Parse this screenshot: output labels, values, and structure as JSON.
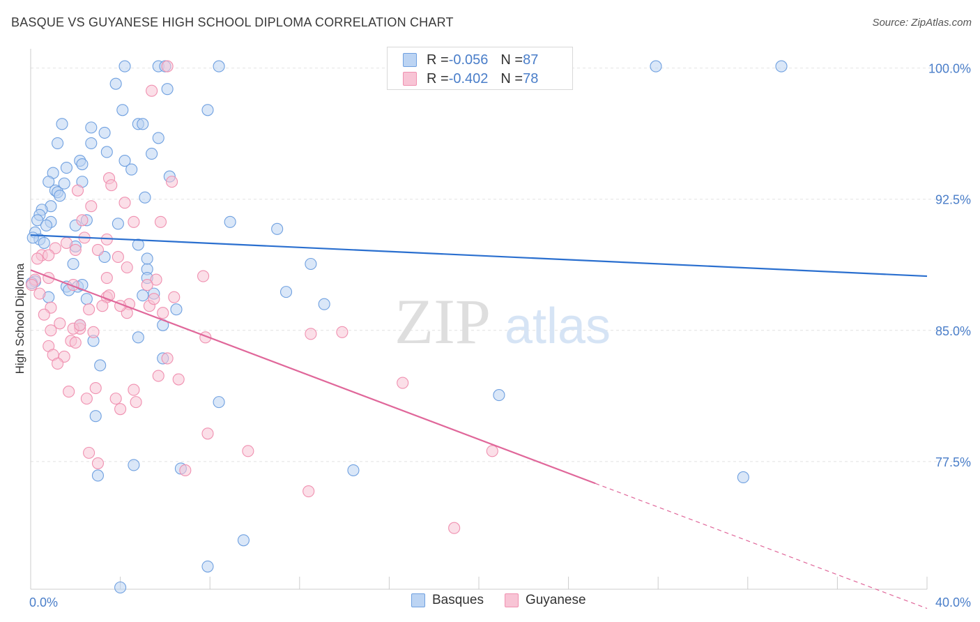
{
  "chart_data": {
    "type": "scatter",
    "title": "BASQUE VS GUYANESE HIGH SCHOOL DIPLOMA CORRELATION CHART",
    "source": "Source: ZipAtlas.com",
    "ylabel": "High School Diploma",
    "xlim": [
      0,
      40
    ],
    "ylim": [
      70.2,
      101.1
    ],
    "x_tick_labels": [
      "0.0%",
      "40.0%"
    ],
    "y_ticks": [
      {
        "value": 100.0,
        "label": "100.0%"
      },
      {
        "value": 92.5,
        "label": "92.5%"
      },
      {
        "value": 85.0,
        "label": "85.0%"
      },
      {
        "value": 77.5,
        "label": "77.5%"
      }
    ],
    "watermark": {
      "left": "ZIP",
      "right": "atlas"
    },
    "legend": [
      {
        "r_label": "R = ",
        "r_value": "-0.056",
        "n_label": "N = ",
        "n_value": "87"
      },
      {
        "r_label": "R = ",
        "r_value": "-0.402",
        "n_label": "N = ",
        "n_value": "78"
      }
    ],
    "series": [
      {
        "name": "Basques",
        "color": "#6fa0e0",
        "fill": "#bcd4f3",
        "line_color": "#2a6fcf",
        "trend": {
          "x0": 0,
          "y0": 90.45,
          "x1": 40,
          "y1": 88.1
        },
        "points": [
          [
            4.2,
            100.1
          ],
          [
            5.7,
            100.1
          ],
          [
            6.0,
            100.1
          ],
          [
            8.4,
            100.1
          ],
          [
            27.9,
            100.1
          ],
          [
            33.5,
            100.1
          ],
          [
            3.8,
            99.1
          ],
          [
            6.1,
            98.8
          ],
          [
            4.1,
            97.6
          ],
          [
            7.9,
            97.6
          ],
          [
            1.4,
            96.8
          ],
          [
            2.7,
            96.6
          ],
          [
            4.8,
            96.8
          ],
          [
            5.0,
            96.8
          ],
          [
            3.3,
            96.3
          ],
          [
            5.7,
            96.0
          ],
          [
            1.2,
            95.7
          ],
          [
            2.7,
            95.7
          ],
          [
            3.4,
            95.2
          ],
          [
            5.4,
            95.1
          ],
          [
            2.2,
            94.7
          ],
          [
            4.2,
            94.7
          ],
          [
            2.3,
            94.5
          ],
          [
            1.6,
            94.3
          ],
          [
            4.5,
            94.2
          ],
          [
            1.0,
            94.0
          ],
          [
            6.2,
            93.8
          ],
          [
            0.8,
            93.5
          ],
          [
            1.5,
            93.4
          ],
          [
            2.3,
            93.5
          ],
          [
            1.1,
            93.0
          ],
          [
            1.2,
            92.9
          ],
          [
            1.3,
            92.7
          ],
          [
            5.1,
            92.6
          ],
          [
            0.9,
            92.1
          ],
          [
            0.5,
            91.9
          ],
          [
            0.4,
            91.6
          ],
          [
            0.3,
            91.3
          ],
          [
            0.9,
            91.2
          ],
          [
            2.5,
            91.3
          ],
          [
            3.9,
            91.1
          ],
          [
            8.9,
            91.2
          ],
          [
            11.0,
            90.8
          ],
          [
            0.7,
            91.0
          ],
          [
            2.0,
            91.0
          ],
          [
            0.2,
            90.6
          ],
          [
            0.4,
            90.2
          ],
          [
            0.6,
            90.0
          ],
          [
            4.8,
            89.9
          ],
          [
            2.0,
            89.8
          ],
          [
            3.3,
            89.2
          ],
          [
            1.9,
            88.8
          ],
          [
            12.5,
            88.8
          ],
          [
            5.2,
            88.5
          ],
          [
            5.2,
            88.0
          ],
          [
            0.2,
            87.8
          ],
          [
            1.6,
            87.5
          ],
          [
            2.1,
            87.5
          ],
          [
            1.7,
            87.3
          ],
          [
            5.0,
            87.0
          ],
          [
            5.5,
            87.1
          ],
          [
            11.4,
            87.2
          ],
          [
            0.8,
            86.9
          ],
          [
            2.5,
            86.8
          ],
          [
            13.1,
            86.5
          ],
          [
            6.5,
            86.2
          ],
          [
            2.2,
            85.3
          ],
          [
            5.9,
            85.3
          ],
          [
            4.8,
            84.6
          ],
          [
            2.8,
            84.4
          ],
          [
            5.9,
            83.4
          ],
          [
            3.1,
            83.0
          ],
          [
            20.9,
            81.3
          ],
          [
            8.4,
            80.9
          ],
          [
            2.9,
            80.1
          ],
          [
            4.6,
            77.3
          ],
          [
            6.7,
            77.1
          ],
          [
            14.4,
            77.0
          ],
          [
            3.0,
            76.7
          ],
          [
            31.8,
            76.6
          ],
          [
            9.5,
            73.0
          ],
          [
            7.9,
            71.5
          ],
          [
            4.0,
            70.3
          ],
          [
            0.05,
            87.7
          ],
          [
            0.1,
            90.3
          ],
          [
            2.3,
            87.6
          ],
          [
            5.2,
            89.1
          ]
        ]
      },
      {
        "name": "Guyanese",
        "color": "#f090b0",
        "fill": "#f8c4d5",
        "line_color": "#e0679a",
        "trend": {
          "x0": 0,
          "y0": 88.45,
          "x1": 25.2,
          "y1": 76.25
        },
        "trend_dashed": {
          "x0": 25.2,
          "y0": 76.25,
          "x1": 40,
          "y1": 69.1
        },
        "points": [
          [
            6.1,
            100.1
          ],
          [
            5.4,
            98.7
          ],
          [
            3.5,
            93.7
          ],
          [
            3.6,
            93.3
          ],
          [
            6.3,
            93.5
          ],
          [
            2.1,
            93.0
          ],
          [
            4.2,
            92.3
          ],
          [
            2.7,
            92.1
          ],
          [
            2.3,
            91.3
          ],
          [
            4.6,
            91.2
          ],
          [
            5.8,
            91.2
          ],
          [
            2.4,
            90.3
          ],
          [
            1.6,
            90.0
          ],
          [
            1.1,
            89.7
          ],
          [
            3.0,
            89.6
          ],
          [
            0.5,
            89.3
          ],
          [
            0.8,
            89.3
          ],
          [
            2.0,
            89.6
          ],
          [
            0.3,
            89.1
          ],
          [
            3.9,
            89.2
          ],
          [
            4.3,
            88.6
          ],
          [
            7.7,
            88.1
          ],
          [
            0.8,
            88.0
          ],
          [
            3.4,
            88.0
          ],
          [
            5.6,
            87.9
          ],
          [
            0.2,
            87.9
          ],
          [
            5.2,
            87.6
          ],
          [
            3.4,
            86.9
          ],
          [
            3.5,
            87.0
          ],
          [
            6.4,
            86.9
          ],
          [
            0.9,
            86.3
          ],
          [
            2.6,
            86.2
          ],
          [
            3.2,
            86.4
          ],
          [
            4.4,
            86.5
          ],
          [
            5.3,
            86.4
          ],
          [
            5.9,
            86.0
          ],
          [
            4.3,
            86.0
          ],
          [
            0.6,
            85.9
          ],
          [
            1.3,
            85.4
          ],
          [
            2.2,
            85.1
          ],
          [
            0.9,
            85.0
          ],
          [
            1.9,
            85.1
          ],
          [
            2.8,
            84.9
          ],
          [
            12.5,
            84.8
          ],
          [
            13.9,
            84.9
          ],
          [
            7.8,
            84.6
          ],
          [
            1.8,
            84.4
          ],
          [
            2.0,
            84.3
          ],
          [
            0.8,
            84.1
          ],
          [
            1.0,
            83.6
          ],
          [
            1.5,
            83.5
          ],
          [
            6.1,
            83.4
          ],
          [
            1.2,
            83.1
          ],
          [
            5.7,
            82.4
          ],
          [
            6.6,
            82.2
          ],
          [
            16.6,
            82.0
          ],
          [
            1.7,
            81.5
          ],
          [
            2.9,
            81.7
          ],
          [
            4.6,
            81.6
          ],
          [
            2.5,
            81.1
          ],
          [
            3.8,
            81.1
          ],
          [
            4.7,
            80.9
          ],
          [
            4.0,
            80.5
          ],
          [
            7.9,
            79.1
          ],
          [
            2.6,
            78.0
          ],
          [
            9.7,
            78.1
          ],
          [
            20.6,
            78.1
          ],
          [
            3.0,
            77.4
          ],
          [
            6.9,
            77.0
          ],
          [
            12.4,
            75.8
          ],
          [
            18.9,
            73.7
          ],
          [
            0.05,
            87.6
          ],
          [
            0.4,
            87.1
          ],
          [
            1.9,
            87.6
          ],
          [
            5.5,
            86.8
          ],
          [
            2.2,
            85.3
          ],
          [
            4.0,
            86.4
          ],
          [
            3.4,
            90.2
          ]
        ]
      }
    ]
  }
}
